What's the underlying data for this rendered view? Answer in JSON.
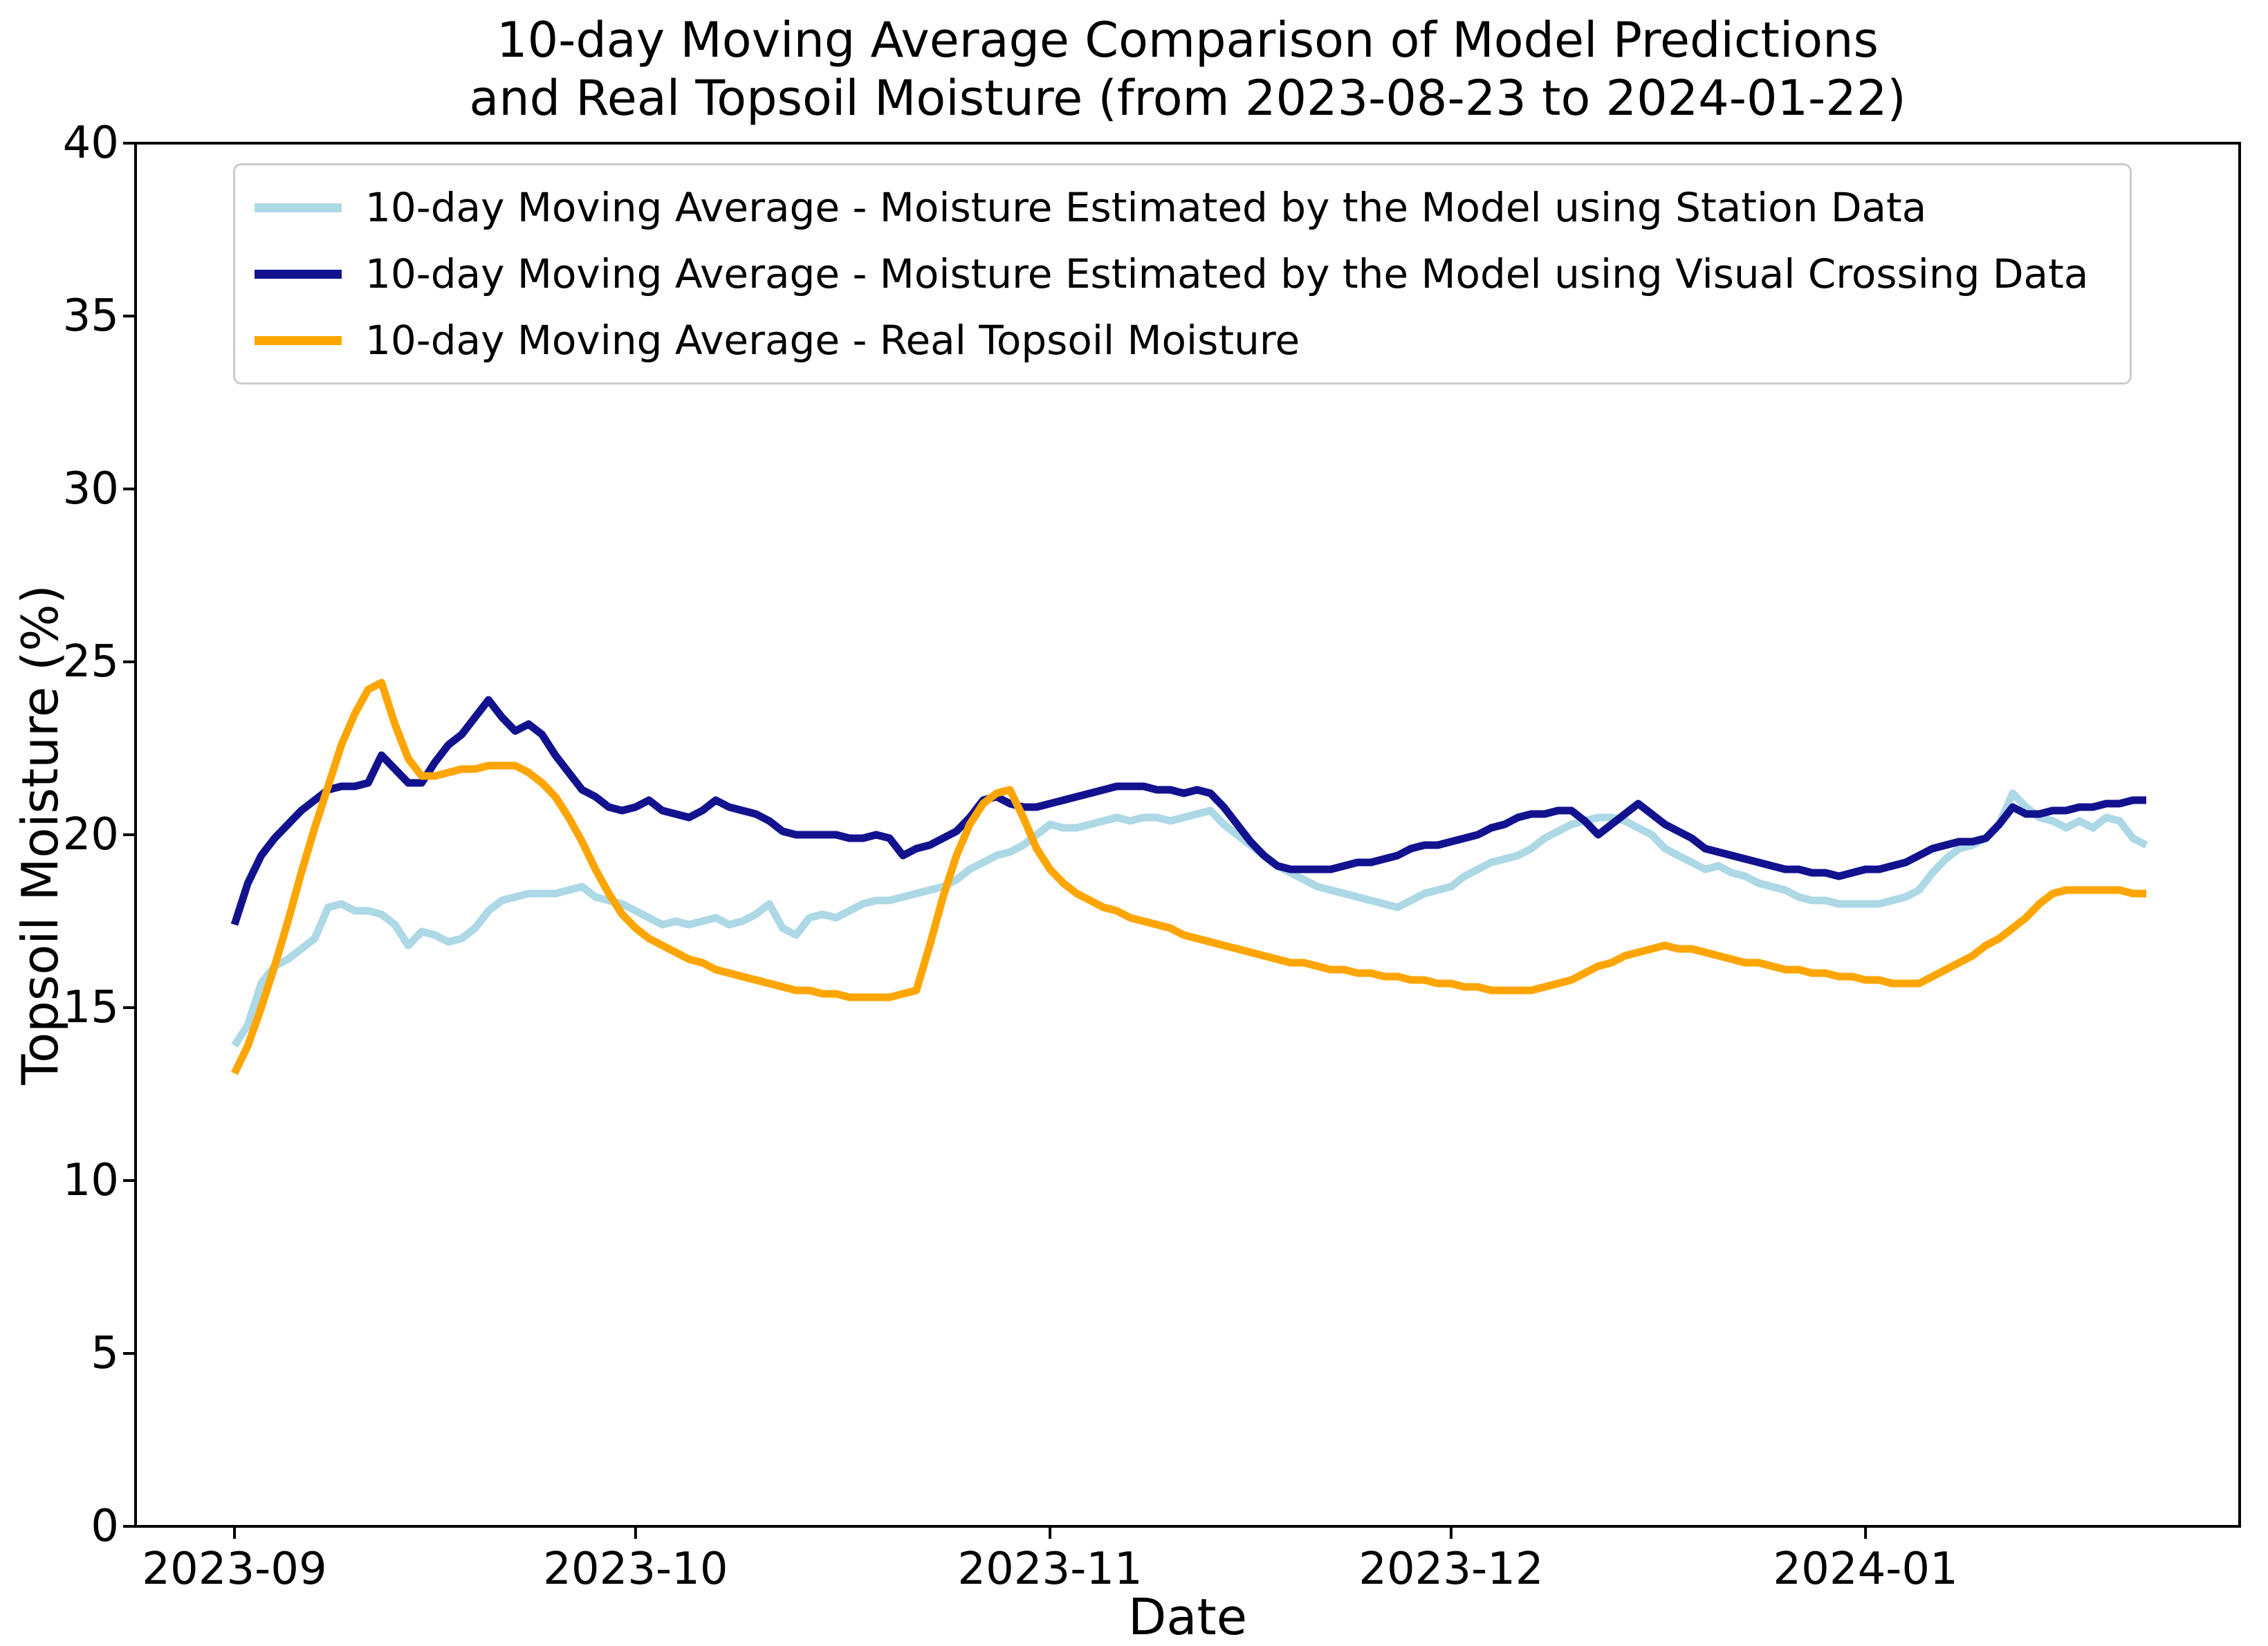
{
  "figure": {
    "title_line1": "10-day Moving Average Comparison of Model Predictions",
    "title_line2": "and Real Topsoil Moisture (from 2023-08-23 to 2024-01-22)"
  },
  "chart_data": {
    "type": "line",
    "title": "10-day Moving Average Comparison of Model Predictions and Real Topsoil Moisture (from 2023-08-23 to 2024-01-22)",
    "xlabel": "Date",
    "ylabel": "Topsoil Moisture (%)",
    "ylim": [
      0,
      40
    ],
    "yticks": [
      0,
      5,
      10,
      15,
      20,
      25,
      30,
      35,
      40
    ],
    "xticks": [
      "2023-09",
      "2023-10",
      "2023-11",
      "2023-12",
      "2024-01"
    ],
    "grid": false,
    "legend_position": "upper left",
    "background_color": "#ffffff",
    "x": [
      "2023-09-01",
      "2023-09-02",
      "2023-09-03",
      "2023-09-04",
      "2023-09-05",
      "2023-09-06",
      "2023-09-07",
      "2023-09-08",
      "2023-09-09",
      "2023-09-10",
      "2023-09-11",
      "2023-09-12",
      "2023-09-13",
      "2023-09-14",
      "2023-09-15",
      "2023-09-16",
      "2023-09-17",
      "2023-09-18",
      "2023-09-19",
      "2023-09-20",
      "2023-09-21",
      "2023-09-22",
      "2023-09-23",
      "2023-09-24",
      "2023-09-25",
      "2023-09-26",
      "2023-09-27",
      "2023-09-28",
      "2023-09-29",
      "2023-09-30",
      "2023-10-01",
      "2023-10-02",
      "2023-10-03",
      "2023-10-04",
      "2023-10-05",
      "2023-10-06",
      "2023-10-07",
      "2023-10-08",
      "2023-10-09",
      "2023-10-10",
      "2023-10-11",
      "2023-10-12",
      "2023-10-13",
      "2023-10-14",
      "2023-10-15",
      "2023-10-16",
      "2023-10-17",
      "2023-10-18",
      "2023-10-19",
      "2023-10-20",
      "2023-10-21",
      "2023-10-22",
      "2023-10-23",
      "2023-10-24",
      "2023-10-25",
      "2023-10-26",
      "2023-10-27",
      "2023-10-28",
      "2023-10-29",
      "2023-10-30",
      "2023-10-31",
      "2023-11-01",
      "2023-11-02",
      "2023-11-03",
      "2023-11-04",
      "2023-11-05",
      "2023-11-06",
      "2023-11-07",
      "2023-11-08",
      "2023-11-09",
      "2023-11-10",
      "2023-11-11",
      "2023-11-12",
      "2023-11-13",
      "2023-11-14",
      "2023-11-15",
      "2023-11-16",
      "2023-11-17",
      "2023-11-18",
      "2023-11-19",
      "2023-11-20",
      "2023-11-21",
      "2023-11-22",
      "2023-11-23",
      "2023-11-24",
      "2023-11-25",
      "2023-11-26",
      "2023-11-27",
      "2023-11-28",
      "2023-11-29",
      "2023-11-30",
      "2023-12-01",
      "2023-12-02",
      "2023-12-03",
      "2023-12-04",
      "2023-12-05",
      "2023-12-06",
      "2023-12-07",
      "2023-12-08",
      "2023-12-09",
      "2023-12-10",
      "2023-12-11",
      "2023-12-12",
      "2023-12-13",
      "2023-12-14",
      "2023-12-15",
      "2023-12-16",
      "2023-12-17",
      "2023-12-18",
      "2023-12-19",
      "2023-12-20",
      "2023-12-21",
      "2023-12-22",
      "2023-12-23",
      "2023-12-24",
      "2023-12-25",
      "2023-12-26",
      "2023-12-27",
      "2023-12-28",
      "2023-12-29",
      "2023-12-30",
      "2023-12-31",
      "2024-01-01",
      "2024-01-02",
      "2024-01-03",
      "2024-01-04",
      "2024-01-05",
      "2024-01-06",
      "2024-01-07",
      "2024-01-08",
      "2024-01-09",
      "2024-01-10",
      "2024-01-11",
      "2024-01-12",
      "2024-01-13",
      "2024-01-14",
      "2024-01-15",
      "2024-01-16",
      "2024-01-17",
      "2024-01-18",
      "2024-01-19",
      "2024-01-20",
      "2024-01-21",
      "2024-01-22"
    ],
    "series": [
      {
        "name": "10-day Moving Average - Moisture Estimated by the Model using Station Data",
        "color": "#ADD8E6",
        "values": [
          13.9,
          14.5,
          15.7,
          16.2,
          16.4,
          16.7,
          17.0,
          17.9,
          18.0,
          17.8,
          17.8,
          17.7,
          17.4,
          16.8,
          17.2,
          17.1,
          16.9,
          17.0,
          17.3,
          17.8,
          18.1,
          18.2,
          18.3,
          18.3,
          18.3,
          18.4,
          18.5,
          18.2,
          18.1,
          18.0,
          17.8,
          17.6,
          17.4,
          17.5,
          17.4,
          17.5,
          17.6,
          17.4,
          17.5,
          17.7,
          18.0,
          17.3,
          17.1,
          17.6,
          17.7,
          17.6,
          17.8,
          18.0,
          18.1,
          18.1,
          18.2,
          18.3,
          18.4,
          18.5,
          18.7,
          19.0,
          19.2,
          19.4,
          19.5,
          19.7,
          20.0,
          20.3,
          20.2,
          20.2,
          20.3,
          20.4,
          20.5,
          20.4,
          20.5,
          20.5,
          20.4,
          20.5,
          20.6,
          20.7,
          20.3,
          20.0,
          19.7,
          19.4,
          19.1,
          18.9,
          18.7,
          18.5,
          18.4,
          18.3,
          18.2,
          18.1,
          18.0,
          17.9,
          18.1,
          18.3,
          18.4,
          18.5,
          18.8,
          19.0,
          19.2,
          19.3,
          19.4,
          19.6,
          19.9,
          20.1,
          20.3,
          20.4,
          20.5,
          20.5,
          20.4,
          20.2,
          20.0,
          19.6,
          19.4,
          19.2,
          19.0,
          19.1,
          18.9,
          18.8,
          18.6,
          18.5,
          18.4,
          18.2,
          18.1,
          18.1,
          18.0,
          18.0,
          18.0,
          18.0,
          18.1,
          18.2,
          18.4,
          18.9,
          19.3,
          19.6,
          19.7,
          19.9,
          20.3,
          21.2,
          20.8,
          20.5,
          20.4,
          20.2,
          20.4,
          20.2,
          20.5,
          20.4,
          19.9,
          19.7
        ]
      },
      {
        "name": "10-day Moving Average - Moisture Estimated by the Model using Visual Crossing Data",
        "color": "#12128F",
        "values": [
          17.4,
          18.6,
          19.4,
          19.9,
          20.3,
          20.7,
          21.0,
          21.3,
          21.4,
          21.4,
          21.5,
          22.3,
          21.9,
          21.5,
          21.5,
          22.1,
          22.6,
          22.9,
          23.4,
          23.9,
          23.4,
          23.0,
          23.2,
          22.9,
          22.3,
          21.8,
          21.3,
          21.1,
          20.8,
          20.7,
          20.8,
          21.0,
          20.7,
          20.6,
          20.5,
          20.7,
          21.0,
          20.8,
          20.7,
          20.6,
          20.4,
          20.1,
          20.0,
          20.0,
          20.0,
          20.0,
          19.9,
          19.9,
          20.0,
          19.9,
          19.4,
          19.6,
          19.7,
          19.9,
          20.1,
          20.5,
          21.0,
          21.1,
          20.9,
          20.8,
          20.8,
          20.9,
          21.0,
          21.1,
          21.2,
          21.3,
          21.4,
          21.4,
          21.4,
          21.3,
          21.3,
          21.2,
          21.3,
          21.2,
          20.8,
          20.3,
          19.8,
          19.4,
          19.1,
          19.0,
          19.0,
          19.0,
          19.0,
          19.1,
          19.2,
          19.2,
          19.3,
          19.4,
          19.6,
          19.7,
          19.7,
          19.8,
          19.9,
          20.0,
          20.2,
          20.3,
          20.5,
          20.6,
          20.6,
          20.7,
          20.7,
          20.4,
          20.0,
          20.3,
          20.6,
          20.9,
          20.6,
          20.3,
          20.1,
          19.9,
          19.6,
          19.5,
          19.4,
          19.3,
          19.2,
          19.1,
          19.0,
          19.0,
          18.9,
          18.9,
          18.8,
          18.9,
          19.0,
          19.0,
          19.1,
          19.2,
          19.4,
          19.6,
          19.7,
          19.8,
          19.8,
          19.9,
          20.3,
          20.8,
          20.6,
          20.6,
          20.7,
          20.7,
          20.8,
          20.8,
          20.9,
          20.9,
          21.0,
          21.0
        ]
      },
      {
        "name": "10-day Moving Average - Real Topsoil Moisture",
        "color": "#FFA500",
        "values": [
          13.1,
          13.9,
          15.0,
          16.2,
          17.5,
          18.9,
          20.2,
          21.4,
          22.6,
          23.5,
          24.2,
          24.4,
          23.2,
          22.2,
          21.7,
          21.7,
          21.8,
          21.9,
          21.9,
          22.0,
          22.0,
          22.0,
          21.8,
          21.5,
          21.1,
          20.5,
          19.8,
          19.0,
          18.3,
          17.7,
          17.3,
          17.0,
          16.8,
          16.6,
          16.4,
          16.3,
          16.1,
          16.0,
          15.9,
          15.8,
          15.7,
          15.6,
          15.5,
          15.5,
          15.4,
          15.4,
          15.3,
          15.3,
          15.3,
          15.3,
          15.4,
          15.5,
          16.8,
          18.2,
          19.4,
          20.3,
          20.9,
          21.2,
          21.3,
          20.5,
          19.6,
          19.0,
          18.6,
          18.3,
          18.1,
          17.9,
          17.8,
          17.6,
          17.5,
          17.4,
          17.3,
          17.1,
          17.0,
          16.9,
          16.8,
          16.7,
          16.6,
          16.5,
          16.4,
          16.3,
          16.3,
          16.2,
          16.1,
          16.1,
          16.0,
          16.0,
          15.9,
          15.9,
          15.8,
          15.8,
          15.7,
          15.7,
          15.6,
          15.6,
          15.5,
          15.5,
          15.5,
          15.5,
          15.6,
          15.7,
          15.8,
          16.0,
          16.2,
          16.3,
          16.5,
          16.6,
          16.7,
          16.8,
          16.7,
          16.7,
          16.6,
          16.5,
          16.4,
          16.3,
          16.3,
          16.2,
          16.1,
          16.1,
          16.0,
          16.0,
          15.9,
          15.9,
          15.8,
          15.8,
          15.7,
          15.7,
          15.7,
          15.9,
          16.1,
          16.3,
          16.5,
          16.8,
          17.0,
          17.3,
          17.6,
          18.0,
          18.3,
          18.4,
          18.4,
          18.4,
          18.4,
          18.4,
          18.3,
          18.3
        ]
      }
    ]
  },
  "layout_text": {
    "note": ""
  }
}
